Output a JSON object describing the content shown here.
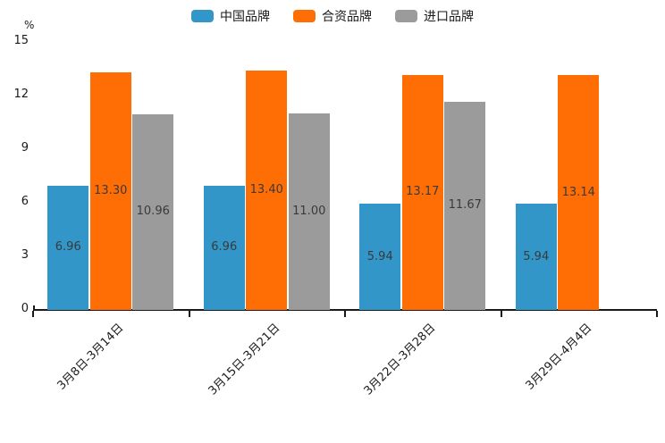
{
  "chart_data": {
    "type": "bar",
    "title": "",
    "unit_label": "%",
    "categories": [
      "3月8日-3月14日",
      "3月15日-3月21日",
      "3月22日-3月28日",
      "3月29日-4月4日"
    ],
    "series": [
      {
        "name": "中国品牌",
        "color": "#3296C8",
        "values": [
          6.96,
          6.96,
          5.94,
          5.94
        ],
        "labels": [
          "6.96",
          "6.96",
          "5.94",
          "5.94"
        ]
      },
      {
        "name": "合资品牌",
        "color": "#FF6D05",
        "values": [
          13.3,
          13.4,
          13.17,
          13.14
        ],
        "labels": [
          "13.30",
          "13.40",
          "13.17",
          "13.14"
        ]
      },
      {
        "name": "进口品牌",
        "color": "#9B9B9B",
        "values": [
          10.96,
          11.0,
          11.67,
          null
        ],
        "labels": [
          "10.96",
          "11.00",
          "11.67",
          null
        ]
      }
    ],
    "ylim": [
      0,
      15
    ],
    "yticks": [
      0,
      3,
      6,
      9,
      12,
      15
    ],
    "legend_position": "top",
    "grid": false,
    "axis_color": "#1a1a1a"
  }
}
